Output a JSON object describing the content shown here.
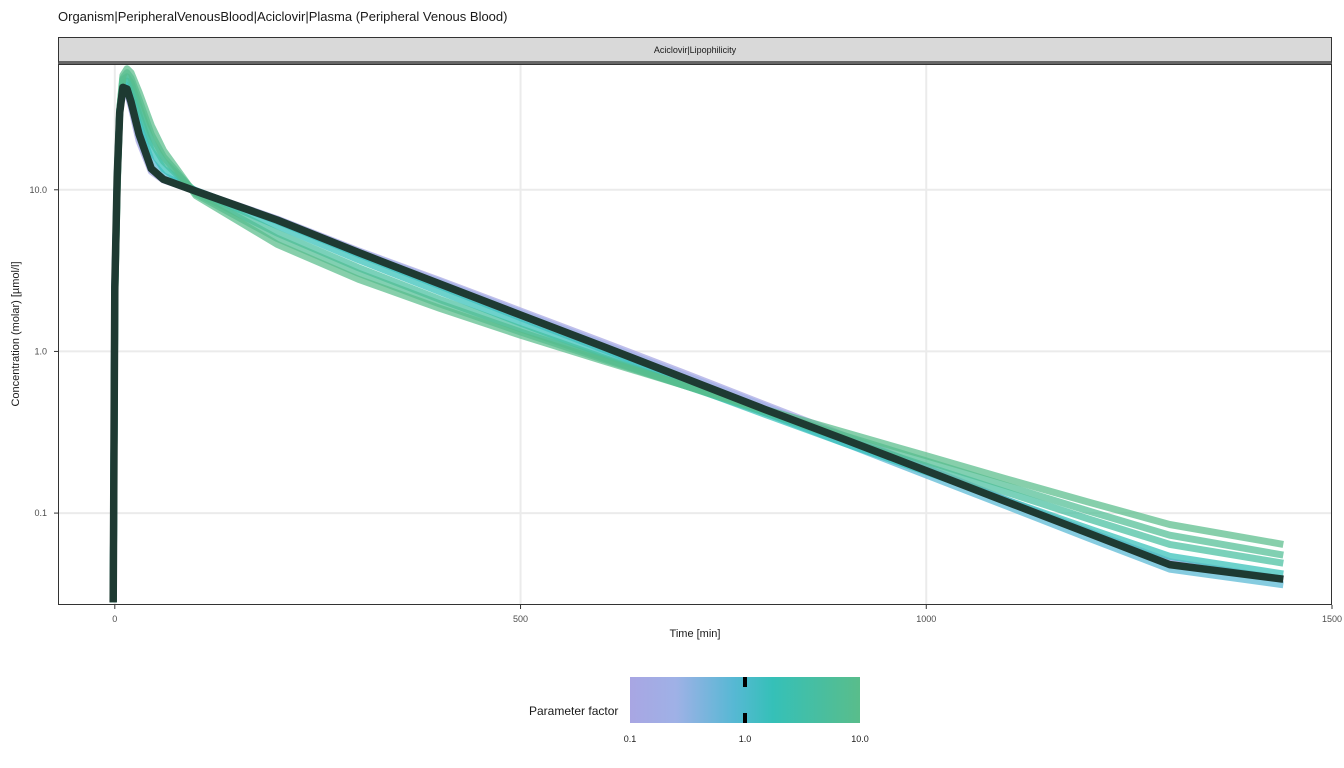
{
  "chart_data": {
    "type": "line",
    "title": "Organism|PeripheralVenousBlood|Aciclovir|Plasma (Peripheral Venous Blood)",
    "facet_label": "Aciclovir|Lipophilicity",
    "xlabel": "Time [min]",
    "ylabel": "Concentration (molar) [µmol/l]",
    "xlim": [
      -70,
      1500
    ],
    "ylim": [
      0.027,
      60
    ],
    "y_scale": "log10",
    "x_ticks": [
      0,
      500,
      1000,
      1500
    ],
    "x_tick_labels": [
      "0",
      "500",
      "1000",
      "1500"
    ],
    "y_ticks": [
      0.1,
      1.0,
      10.0
    ],
    "y_tick_labels": [
      "0.1",
      "1.0",
      "10.0"
    ],
    "grid": true,
    "legend": {
      "title": "Parameter factor",
      "position": "bottom",
      "scale": "log10",
      "range": [
        0.1,
        10.0
      ],
      "tick_values": [
        0.1,
        1.0,
        10.0
      ],
      "tick_labels": [
        "0.1",
        "1.0",
        "10.0"
      ],
      "marked_values": [
        1.0
      ],
      "colors": [
        "#a8a6e3",
        "#9fb1e6",
        "#57b8d4",
        "#35c0b8",
        "#59bd8b"
      ]
    },
    "reference_series": {
      "parameter_factor": 1.0,
      "color": "#1e3a32",
      "x": [
        -2,
        0,
        3,
        6,
        10,
        15,
        20,
        30,
        45,
        60,
        100,
        200,
        300,
        400,
        500,
        600,
        700,
        800,
        900,
        1000,
        1100,
        1200,
        1300,
        1440
      ],
      "y": [
        0.028,
        2.5,
        12,
        30,
        43,
        42,
        35,
        22,
        13.5,
        11.6,
        9.8,
        6.5,
        4.1,
        2.62,
        1.68,
        1.08,
        0.69,
        0.44,
        0.285,
        0.183,
        0.117,
        0.075,
        0.048,
        0.039
      ]
    },
    "series": [
      {
        "parameter_factor": 0.1,
        "color": "#a8a6e3",
        "x": [
          -2,
          0,
          3,
          6,
          10,
          15,
          20,
          30,
          45,
          60,
          100,
          200,
          300,
          400,
          500,
          600,
          700,
          800,
          900,
          1000,
          1100,
          1200,
          1300,
          1440
        ],
        "y": [
          0.028,
          2.5,
          12,
          30,
          42,
          40,
          33,
          20,
          13,
          11.5,
          9.8,
          6.6,
          4.2,
          2.75,
          1.78,
          1.15,
          0.74,
          0.47,
          0.3,
          0.19,
          0.12,
          0.077,
          0.05,
          0.039
        ]
      },
      {
        "parameter_factor": 0.3,
        "color": "#9fb1e6",
        "x": [
          -2,
          0,
          3,
          6,
          10,
          15,
          20,
          30,
          45,
          60,
          100,
          200,
          300,
          400,
          500,
          600,
          700,
          800,
          900,
          1000,
          1100,
          1200,
          1300,
          1440
        ],
        "y": [
          0.028,
          2.5,
          12,
          30,
          43,
          41,
          34,
          21,
          13.3,
          11.6,
          9.8,
          6.55,
          4.15,
          2.7,
          1.74,
          1.12,
          0.72,
          0.46,
          0.29,
          0.186,
          0.119,
          0.076,
          0.049,
          0.039
        ]
      },
      {
        "parameter_factor": 2.0,
        "color": "#57b8d4",
        "x": [
          -2,
          0,
          3,
          6,
          10,
          15,
          20,
          30,
          45,
          60,
          100,
          200,
          300,
          400,
          500,
          600,
          700,
          800,
          900,
          1000,
          1100,
          1200,
          1300,
          1440
        ],
        "y": [
          0.028,
          2.5,
          12,
          30,
          44,
          44,
          38,
          25,
          15,
          12.2,
          9.9,
          6.4,
          4.0,
          2.55,
          1.62,
          1.04,
          0.66,
          0.42,
          0.27,
          0.172,
          0.11,
          0.07,
          0.045,
          0.036
        ]
      },
      {
        "parameter_factor": 3.0,
        "color": "#35c0b8",
        "x": [
          -2,
          0,
          3,
          6,
          10,
          15,
          20,
          30,
          45,
          60,
          100,
          200,
          300,
          400,
          500,
          600,
          700,
          800,
          900,
          1000,
          1100,
          1200,
          1300,
          1440
        ],
        "y": [
          0.028,
          2.4,
          12,
          31,
          46,
          47,
          42,
          29,
          17.5,
          13.5,
          9.8,
          6.0,
          3.7,
          2.35,
          1.5,
          0.97,
          0.63,
          0.41,
          0.27,
          0.18,
          0.12,
          0.08,
          0.054,
          0.042
        ]
      },
      {
        "parameter_factor": 5.0,
        "color": "#47bf9f",
        "x": [
          -2,
          0,
          3,
          6,
          10,
          15,
          20,
          30,
          45,
          60,
          100,
          200,
          300,
          400,
          500,
          600,
          700,
          800,
          900,
          1000,
          1100,
          1200,
          1300,
          1440
        ],
        "y": [
          0.028,
          2.3,
          11,
          31,
          48,
          50,
          46,
          33,
          20,
          15,
          9.6,
          5.4,
          3.3,
          2.1,
          1.38,
          0.92,
          0.62,
          0.42,
          0.285,
          0.195,
          0.134,
          0.092,
          0.064,
          0.049
        ]
      },
      {
        "parameter_factor": 7.0,
        "color": "#50be94",
        "x": [
          -2,
          0,
          3,
          6,
          10,
          15,
          20,
          30,
          45,
          60,
          100,
          200,
          300,
          400,
          500,
          600,
          700,
          800,
          900,
          1000,
          1100,
          1200,
          1300,
          1440
        ],
        "y": [
          0.028,
          2.2,
          11,
          31,
          49,
          53,
          49,
          36,
          22,
          16,
          9.4,
          5.0,
          3.05,
          1.97,
          1.32,
          0.9,
          0.62,
          0.43,
          0.3,
          0.21,
          0.147,
          0.103,
          0.073,
          0.055
        ]
      },
      {
        "parameter_factor": 10.0,
        "color": "#59bd8b",
        "x": [
          -2,
          0,
          3,
          6,
          10,
          15,
          20,
          30,
          45,
          60,
          100,
          200,
          300,
          400,
          500,
          600,
          700,
          800,
          900,
          1000,
          1100,
          1200,
          1300,
          1440
        ],
        "y": [
          0.028,
          2.1,
          10,
          31,
          51,
          56,
          53,
          40,
          25,
          17.5,
          9.2,
          4.6,
          2.8,
          1.85,
          1.26,
          0.88,
          0.62,
          0.44,
          0.315,
          0.226,
          0.162,
          0.117,
          0.085,
          0.064
        ]
      }
    ]
  }
}
